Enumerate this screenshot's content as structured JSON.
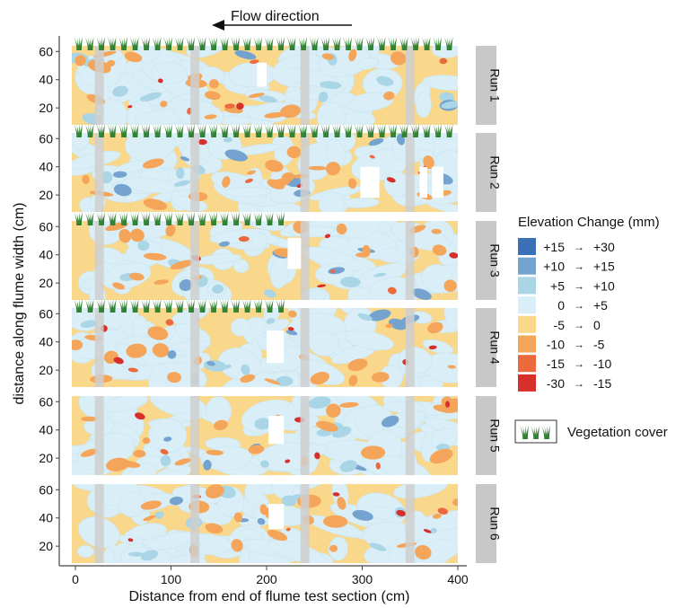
{
  "chart_data": {
    "type": "heatmap",
    "title": "",
    "flow_label": "Flow direction",
    "xlabel": "Distance from end of flume test section (cm)",
    "ylabel": "distance along flume width (cm)",
    "xlim": [
      -5,
      405
    ],
    "ylim": [
      8,
      64
    ],
    "x_ticks": [
      "0",
      "100",
      "200",
      "300",
      "400"
    ],
    "y_ticks": [
      "60",
      "40",
      "20"
    ],
    "panels": [
      {
        "name": "Run 1",
        "vegetation_cover": [
          0,
          400
        ],
        "unscanned": [
          {
            "x": [
              190,
              200
            ],
            "y": [
              35,
              52
            ]
          }
        ]
      },
      {
        "name": "Run 2",
        "vegetation_cover": [
          0,
          400
        ],
        "unscanned": [
          {
            "x": [
              298,
              318
            ],
            "y": [
              18,
              40
            ]
          },
          {
            "x": [
              360,
              368
            ],
            "y": [
              18,
              40
            ]
          },
          {
            "x": [
              373,
              385
            ],
            "y": [
              18,
              40
            ]
          }
        ]
      },
      {
        "name": "Run 3",
        "vegetation_cover": [
          0,
          225
        ],
        "unscanned": [
          {
            "x": [
              222,
              236
            ],
            "y": [
              30,
              52
            ]
          }
        ]
      },
      {
        "name": "Run 4",
        "vegetation_cover": [
          0,
          220
        ],
        "unscanned": [
          {
            "x": [
              200,
              218
            ],
            "y": [
              25,
              48
            ]
          }
        ]
      },
      {
        "name": "Run 5",
        "vegetation_cover": null,
        "unscanned": [
          {
            "x": [
              202,
              218
            ],
            "y": [
              30,
              50
            ]
          }
        ]
      },
      {
        "name": "Run 6",
        "vegetation_cover": null,
        "unscanned": [
          {
            "x": [
              202,
              218
            ],
            "y": [
              32,
              50
            ]
          }
        ]
      }
    ],
    "gray_bands_x": [
      25,
      125,
      240,
      350
    ],
    "legend_title": "Elevation Change (mm)",
    "legend": [
      {
        "from": "+15",
        "to": "+30",
        "color": "#3b6fb6"
      },
      {
        "from": "+10",
        "to": "+15",
        "color": "#74a3cf"
      },
      {
        "from": "+5",
        "to": "+10",
        "color": "#a9d5e6"
      },
      {
        "from": "0",
        "to": "+5",
        "color": "#d9eef6"
      },
      {
        "from": "-5",
        "to": "0",
        "color": "#f9d78b"
      },
      {
        "from": "-10",
        "to": "-5",
        "color": "#f4a55a"
      },
      {
        "from": "-15",
        "to": "-10",
        "color": "#ea6a3d"
      },
      {
        "from": "-30",
        "to": "-15",
        "color": "#d7302a"
      }
    ],
    "vegetation_legend": "Vegetation cover"
  }
}
